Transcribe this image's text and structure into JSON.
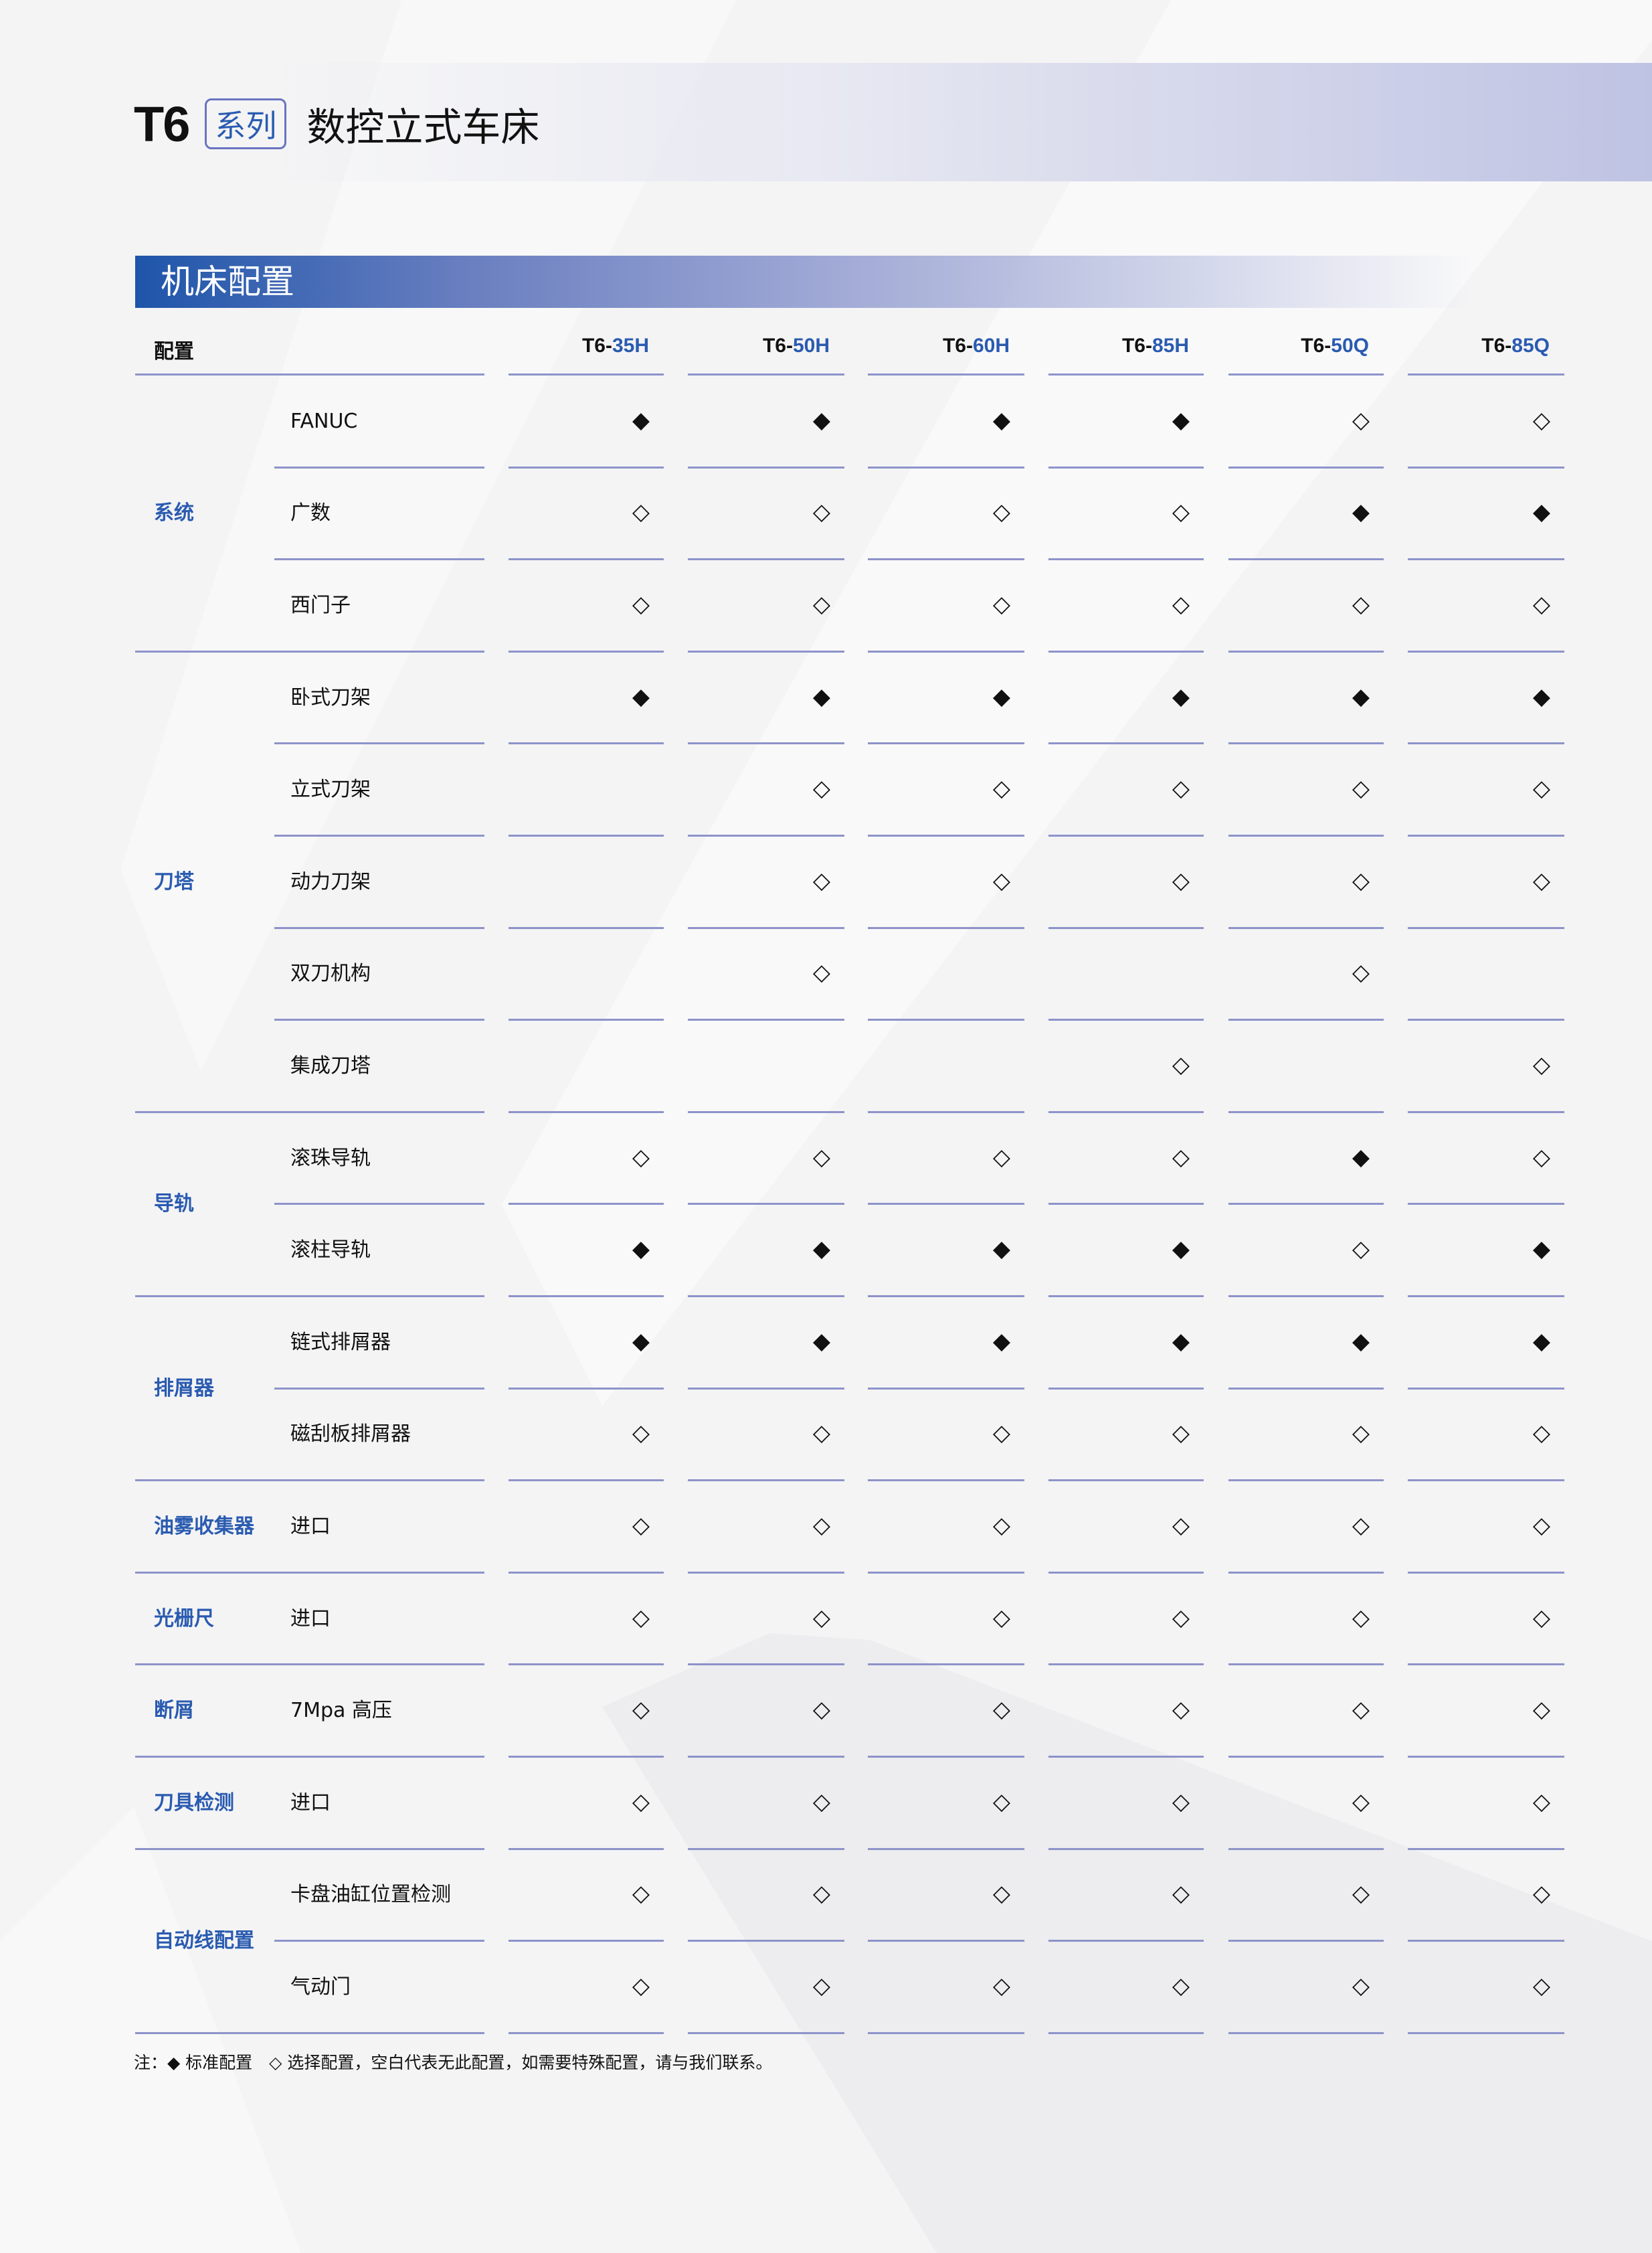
{
  "header": {
    "series_code": "T6",
    "series_badge": "系列",
    "title": "数控立式车床"
  },
  "section": {
    "title": "机床配置"
  },
  "table": {
    "config_header": "配置",
    "models": [
      {
        "prefix": "T6-",
        "suffix": "35H"
      },
      {
        "prefix": "T6-",
        "suffix": "50H"
      },
      {
        "prefix": "T6-",
        "suffix": "60H"
      },
      {
        "prefix": "T6-",
        "suffix": "85H"
      },
      {
        "prefix": "T6-",
        "suffix": "50Q"
      },
      {
        "prefix": "T6-",
        "suffix": "85Q"
      }
    ],
    "symbols": {
      "S": "◆",
      "O": "◇",
      "": ""
    },
    "groups": [
      {
        "name": "系统",
        "rows": [
          {
            "item": "FANUC",
            "values": [
              "S",
              "S",
              "S",
              "S",
              "O",
              "O"
            ]
          },
          {
            "item": "广数",
            "values": [
              "O",
              "O",
              "O",
              "O",
              "S",
              "S"
            ]
          },
          {
            "item": "西门子",
            "values": [
              "O",
              "O",
              "O",
              "O",
              "O",
              "O"
            ]
          }
        ]
      },
      {
        "name": "刀塔",
        "rows": [
          {
            "item": "卧式刀架",
            "values": [
              "S",
              "S",
              "S",
              "S",
              "S",
              "S"
            ]
          },
          {
            "item": "立式刀架",
            "values": [
              "",
              "O",
              "O",
              "O",
              "O",
              "O"
            ]
          },
          {
            "item": "动力刀架",
            "values": [
              "",
              "O",
              "O",
              "O",
              "O",
              "O"
            ]
          },
          {
            "item": "双刀机构",
            "values": [
              "",
              "O",
              "",
              "",
              "O",
              ""
            ]
          },
          {
            "item": "集成刀塔",
            "values": [
              "",
              "",
              "",
              "O",
              "",
              "O"
            ]
          }
        ]
      },
      {
        "name": "导轨",
        "rows": [
          {
            "item": "滚珠导轨",
            "values": [
              "O",
              "O",
              "O",
              "O",
              "S",
              "O"
            ]
          },
          {
            "item": "滚柱导轨",
            "values": [
              "S",
              "S",
              "S",
              "S",
              "O",
              "S"
            ]
          }
        ]
      },
      {
        "name": "排屑器",
        "rows": [
          {
            "item": "链式排屑器",
            "values": [
              "S",
              "S",
              "S",
              "S",
              "S",
              "S"
            ]
          },
          {
            "item": "磁刮板排屑器",
            "values": [
              "O",
              "O",
              "O",
              "O",
              "O",
              "O"
            ]
          }
        ]
      },
      {
        "name": "油雾收集器",
        "rows": [
          {
            "item": "进口",
            "values": [
              "O",
              "O",
              "O",
              "O",
              "O",
              "O"
            ]
          }
        ]
      },
      {
        "name": "光栅尺",
        "rows": [
          {
            "item": "进口",
            "values": [
              "O",
              "O",
              "O",
              "O",
              "O",
              "O"
            ]
          }
        ]
      },
      {
        "name": "断屑",
        "rows": [
          {
            "item": "7Mpa 高压",
            "values": [
              "O",
              "O",
              "O",
              "O",
              "O",
              "O"
            ]
          }
        ]
      },
      {
        "name": "刀具检测",
        "rows": [
          {
            "item": "进口",
            "values": [
              "O",
              "O",
              "O",
              "O",
              "O",
              "O"
            ]
          }
        ]
      },
      {
        "name": "自动线配置",
        "rows": [
          {
            "item": "卡盘油缸位置检测",
            "values": [
              "O",
              "O",
              "O",
              "O",
              "O",
              "O"
            ]
          },
          {
            "item": "气动门",
            "values": [
              "O",
              "O",
              "O",
              "O",
              "O",
              "O"
            ]
          }
        ]
      }
    ]
  },
  "note": "注：◆ 标准配置　◇ 选择配置，空白代表无此配置，如需要特殊配置，请与我们联系。"
}
